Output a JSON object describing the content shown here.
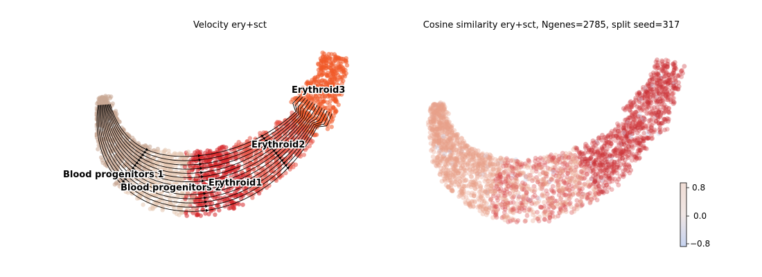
{
  "chart_data": [
    {
      "type": "scatter",
      "subtype": "umap embedding with velocity streamlines",
      "title": "Velocity ery+sct",
      "axes_visible": false,
      "grid": false,
      "clusters": [
        {
          "name": "Blood progenitors 1",
          "color": "#c9a893"
        },
        {
          "name": "Blood progenitors 2",
          "color": "#e6c8b3"
        },
        {
          "name": "Erythroid1",
          "color": "#d6262a"
        },
        {
          "name": "Erythroid2",
          "color": "#e7574a"
        },
        {
          "name": "Erythroid3",
          "color": "#f05a28"
        }
      ],
      "labels": [
        "Blood progenitors 1",
        "Blood progenitors 2",
        "Erythroid1",
        "Erythroid2",
        "Erythroid3"
      ],
      "streamline_direction": "progenitors → Erythroid3"
    },
    {
      "type": "scatter",
      "subtype": "umap embedding colored by cosine similarity",
      "title": "Cosine similarity ery+sct, Ngenes=2785, split seed=317",
      "axes_visible": false,
      "grid": false,
      "colorbar": {
        "ticks": [
          "0.8",
          "0.0",
          "−0.8"
        ],
        "range": [
          -0.9,
          0.9
        ],
        "colormap": "coolwarm",
        "low_color": "#c6d3f0",
        "mid_color": "#f0e6e4",
        "high_color": "#f0ddd5"
      },
      "dominant_value_range": [
        0.2,
        0.9
      ],
      "dominant_colors": [
        "#e9a08a",
        "#d6494a",
        "#c6282d"
      ]
    }
  ]
}
